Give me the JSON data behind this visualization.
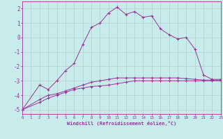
{
  "xlabel": "Windchill (Refroidissement éolien,°C)",
  "background_color": "#c8ecec",
  "grid_color": "#b0c8c8",
  "line_color": "#993399",
  "xlim": [
    0,
    23
  ],
  "ylim": [
    -5.3,
    2.5
  ],
  "xticks": [
    0,
    1,
    2,
    3,
    4,
    5,
    6,
    7,
    8,
    9,
    10,
    11,
    12,
    13,
    14,
    15,
    16,
    17,
    18,
    19,
    20,
    21,
    22,
    23
  ],
  "yticks": [
    -5,
    -4,
    -3,
    -2,
    -1,
    0,
    1,
    2
  ],
  "line1_x": [
    0,
    2,
    3,
    4,
    5,
    6,
    7,
    8,
    9,
    10,
    11,
    12,
    13,
    14,
    15,
    16,
    17,
    18,
    19,
    20,
    21,
    22,
    23
  ],
  "line1_y": [
    -5.0,
    -3.3,
    -3.6,
    -3.0,
    -2.3,
    -1.8,
    -0.5,
    0.7,
    1.0,
    1.7,
    2.1,
    1.6,
    1.8,
    1.4,
    1.5,
    0.6,
    0.2,
    -0.1,
    0.0,
    -0.8,
    -2.6,
    -2.9,
    -2.9
  ],
  "line2_x": [
    0,
    2,
    3,
    4,
    5,
    6,
    7,
    8,
    9,
    10,
    11,
    12,
    13,
    14,
    15,
    16,
    17,
    18,
    19,
    20,
    21,
    22,
    23
  ],
  "line2_y": [
    -5.0,
    -4.3,
    -4.0,
    -3.9,
    -3.7,
    -3.5,
    -3.3,
    -3.1,
    -3.0,
    -2.9,
    -2.8,
    -2.8,
    -2.8,
    -2.8,
    -2.8,
    -2.8,
    -2.8,
    -2.8,
    -2.85,
    -2.9,
    -2.95,
    -2.95,
    -2.95
  ],
  "line3_x": [
    0,
    2,
    3,
    4,
    5,
    6,
    7,
    8,
    9,
    10,
    11,
    12,
    13,
    14,
    15,
    16,
    17,
    18,
    19,
    20,
    21,
    22,
    23
  ],
  "line3_y": [
    -5.0,
    -4.5,
    -4.2,
    -4.0,
    -3.8,
    -3.6,
    -3.5,
    -3.4,
    -3.35,
    -3.3,
    -3.2,
    -3.1,
    -3.0,
    -3.0,
    -3.0,
    -3.0,
    -3.0,
    -3.0,
    -3.0,
    -3.0,
    -3.0,
    -3.0,
    -3.0
  ],
  "xlabel_fontsize": 5.0,
  "ytick_fontsize": 5.5,
  "xtick_fontsize": 4.2
}
